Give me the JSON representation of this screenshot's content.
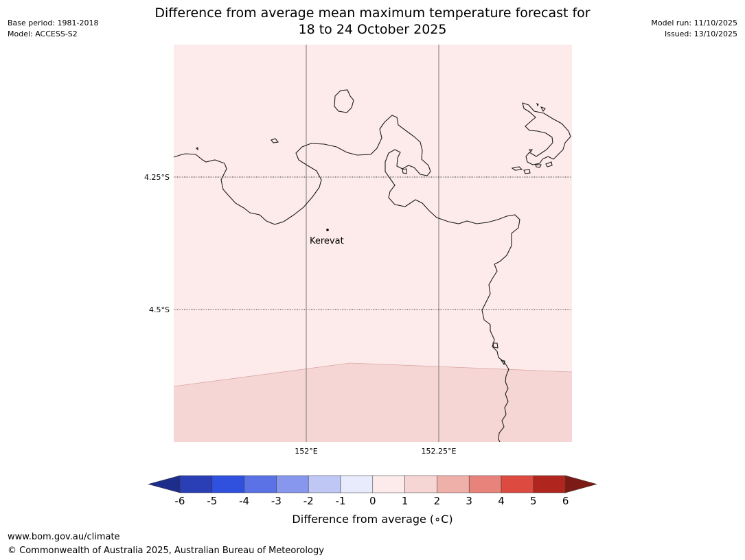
{
  "header": {
    "title_line1": "Difference from average mean maximum temperature forecast for",
    "title_line2": "18 to 24 October 2025",
    "base_period": "Base period: 1981-2018",
    "model": "Model: ACCESS-S2",
    "model_run": "Model run: 11/10/2025",
    "issued": "Issued: 13/10/2025"
  },
  "map": {
    "gridlines": {
      "lat_labels": [
        "4.25°S",
        "4.5°S"
      ],
      "lon_labels": [
        "152°E",
        "152.25°E"
      ]
    },
    "place": {
      "name": "Kerevat"
    },
    "colors": {
      "upper_region": "#fcebea",
      "lower_region": "#f6d6d4",
      "coastline": "#1a1a1a"
    }
  },
  "colorbar": {
    "ticks": [
      "-6",
      "-5",
      "-4",
      "-3",
      "-2",
      "-1",
      "0",
      "1",
      "2",
      "3",
      "4",
      "5",
      "6"
    ],
    "colors": [
      "#1e2d8c",
      "#2a3fb5",
      "#3050de",
      "#5a72e6",
      "#8797ed",
      "#bfc8f5",
      "#e8ebfc",
      "#fcebea",
      "#f6d6d4",
      "#f0b0aa",
      "#e8837c",
      "#dc4a40",
      "#b0261f",
      "#7c1a16"
    ],
    "label": "Difference from average (∘C)"
  },
  "footer": {
    "url": "www.bom.gov.au/climate",
    "copyright": "© Commonwealth of Australia 2025, Australian Bureau of Meteorology"
  }
}
